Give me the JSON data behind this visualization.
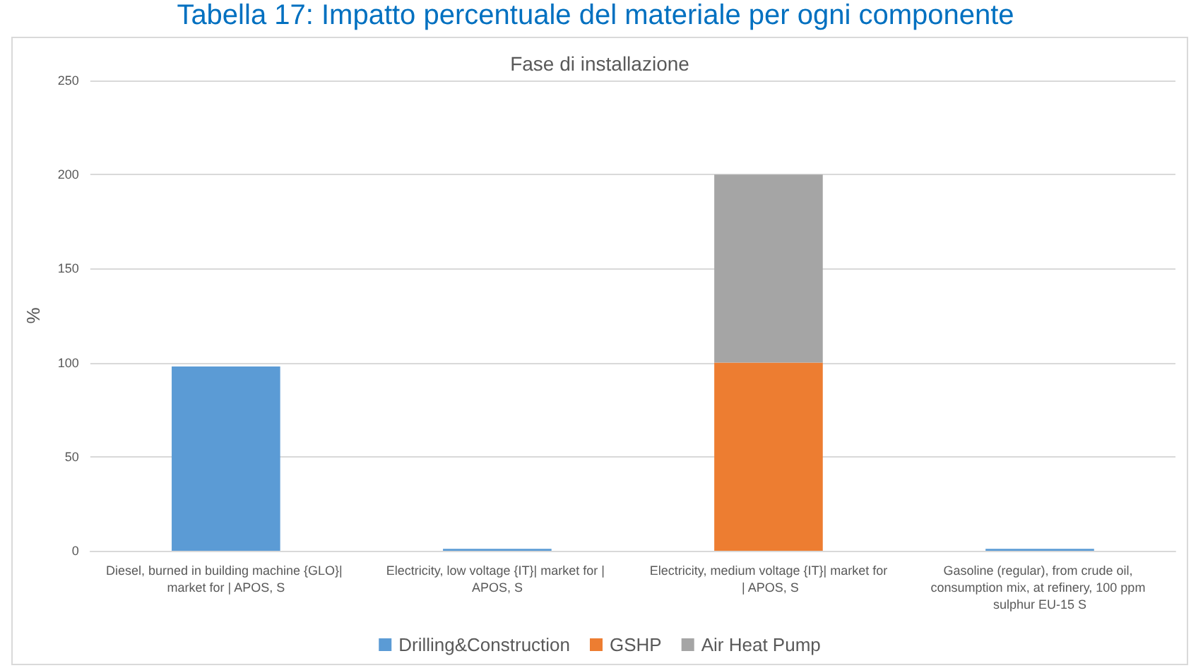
{
  "chart_data": {
    "type": "bar",
    "title": "Tabella 17: Impatto percentuale del materiale per ogni componente",
    "subtitle": "Fase di installazione",
    "ylabel": "%",
    "categories": [
      "Diesel, burned in building machine {GLO}| market for | APOS, S",
      "Electricity, low voltage {IT}| market for | APOS, S",
      "Electricity, medium voltage {IT}| market for | APOS, S",
      "Gasoline (regular), from crude oil, consumption mix, at refinery, 100 ppm sulphur EU-15 S"
    ],
    "series": [
      {
        "name": "Drilling&Construction",
        "color": "#5b9bd5",
        "values": [
          98,
          1,
          0,
          1
        ]
      },
      {
        "name": "GSHP",
        "color": "#ed7d31",
        "values": [
          0,
          0,
          100,
          0
        ]
      },
      {
        "name": "Air Heat Pump",
        "color": "#a5a5a5",
        "values": [
          0,
          0,
          100,
          0
        ]
      }
    ],
    "stacked": true,
    "ylim": [
      0,
      250
    ],
    "yticks": [
      0,
      50,
      100,
      150,
      200,
      250
    ],
    "grid": "y",
    "legend": "bottom"
  }
}
